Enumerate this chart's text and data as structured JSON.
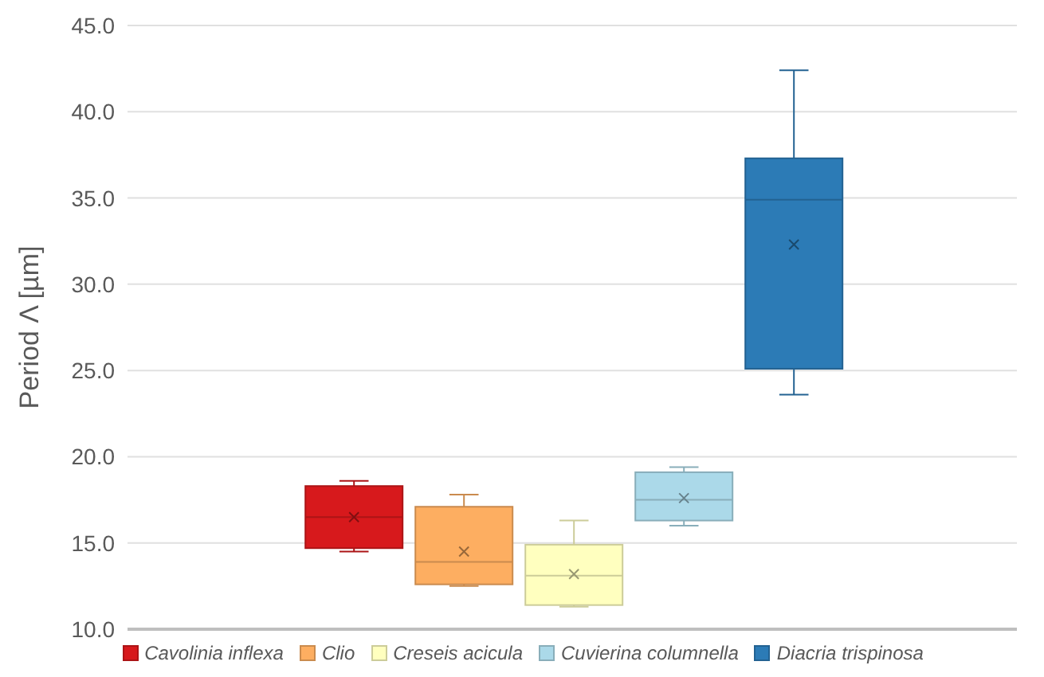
{
  "chart_data": {
    "type": "box",
    "ylabel": "Period Λ [µm]",
    "categories": [
      null
    ],
    "ylim": [
      10,
      45
    ],
    "yticks": [
      {
        "value": 10,
        "label": "10.0"
      },
      {
        "value": 15,
        "label": "15.0"
      },
      {
        "value": 20,
        "label": "20.0"
      },
      {
        "value": 25,
        "label": "25.0"
      },
      {
        "value": 30,
        "label": "30.0"
      },
      {
        "value": 35,
        "label": "35.0"
      },
      {
        "value": 40,
        "label": "40.0"
      },
      {
        "value": 45,
        "label": "45.0"
      }
    ],
    "grid": "y",
    "legend": "bottom",
    "tick_labels": "y",
    "marker": "cross",
    "series": [
      {
        "name": "Cavolinia inflexa",
        "color": "#d7191c",
        "boxes": [
          {
            "low": 14.5,
            "q1": 14.7,
            "median": 16.5,
            "q3": 18.3,
            "high": 18.6,
            "mean": 16.5
          }
        ]
      },
      {
        "name": "Clio",
        "color": "#fdae61",
        "boxes": [
          {
            "low": 12.5,
            "q1": 12.6,
            "median": 13.9,
            "q3": 17.1,
            "high": 17.8,
            "mean": 14.5
          }
        ]
      },
      {
        "name": "Creseis acicula",
        "color": "#ffffbf",
        "boxes": [
          {
            "low": 11.3,
            "q1": 11.4,
            "median": 13.1,
            "q3": 14.9,
            "high": 16.3,
            "mean": 13.2
          }
        ]
      },
      {
        "name": "Cuvierina columnella",
        "color": "#abd9e9",
        "boxes": [
          {
            "low": 16.0,
            "q1": 16.3,
            "median": 17.5,
            "q3": 19.1,
            "high": 19.4,
            "mean": 17.6
          }
        ]
      },
      {
        "name": "Diacria trispinosa",
        "color": "#2c7bb6",
        "boxes": [
          {
            "low": 23.6,
            "q1": 25.1,
            "median": 34.9,
            "q3": 37.3,
            "high": 42.4,
            "mean": 32.3
          }
        ]
      }
    ]
  }
}
